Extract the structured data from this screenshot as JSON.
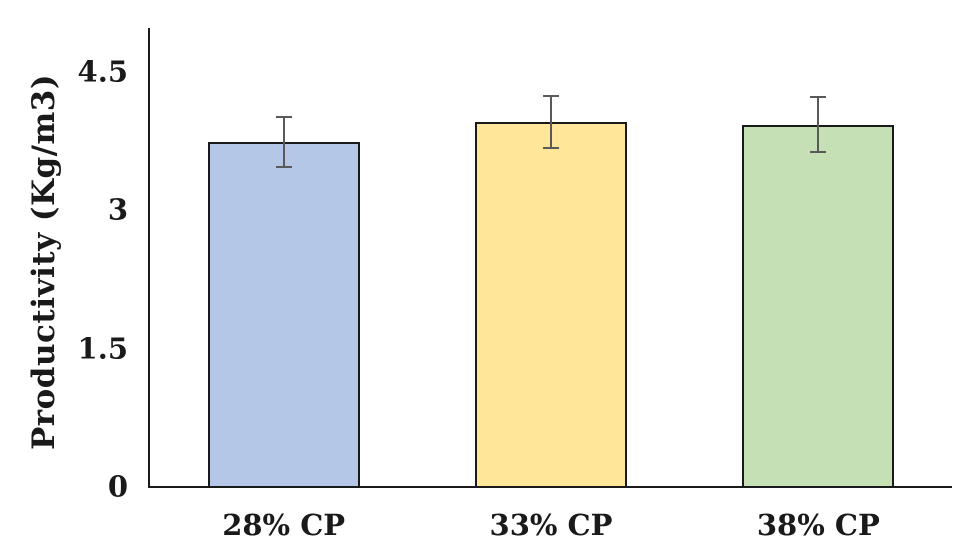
{
  "chart_data": {
    "type": "bar",
    "title": "",
    "xlabel": "",
    "ylabel": "Productivity (Kg/m3)",
    "categories": [
      "28% CP",
      "33% CP",
      "38% CP"
    ],
    "values": [
      3.75,
      3.97,
      3.94
    ],
    "errors": [
      0.27,
      0.28,
      0.3
    ],
    "yticks": [
      0,
      1.5,
      3,
      4.5
    ],
    "ytick_labels": [
      "0",
      "1.5",
      "3",
      "4.5"
    ],
    "ylim": [
      0,
      5
    ],
    "grid": false,
    "legend": false,
    "colors": {
      "bar_fills": [
        "#B4C7E7",
        "#FFE699",
        "#C5E0B4"
      ],
      "bar_border": "#1a1a1a",
      "error_bar": "#595959",
      "axis": "#1a1a1a",
      "text": "#1a1a1a",
      "background": "#ffffff"
    }
  }
}
